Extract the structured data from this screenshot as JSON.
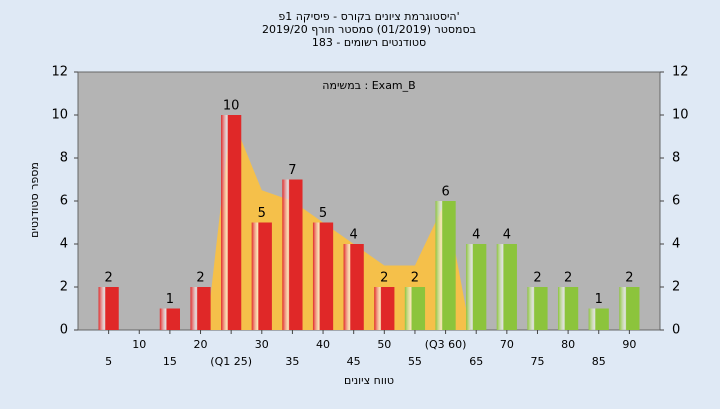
{
  "chart_data": {
    "type": "histogram",
    "title": "היסטוגרמת ציונים בקורס - פיסיקה 1פ'",
    "subtitle": "בסמסטר (01/2019) סמסטר חורף 2019/20",
    "subtitle2": "סטודנטים רשומים - 183",
    "annotation": "במשימה : Exam_B",
    "x_label": "טווח ציונים",
    "y_label": "מספר סטודנטים",
    "x": [
      5,
      10,
      15,
      20,
      25,
      30,
      35,
      40,
      45,
      50,
      55,
      60,
      65,
      70,
      75,
      80,
      85,
      90
    ],
    "values": [
      2,
      0,
      1,
      2,
      10,
      5,
      7,
      5,
      4,
      2,
      2,
      6,
      4,
      4,
      2,
      2,
      1,
      2
    ],
    "colors": [
      "#e02828",
      "#e02828",
      "#e02828",
      "#e02828",
      "#e02828",
      "#e02828",
      "#e02828",
      "#e02828",
      "#e02828",
      "#e02828",
      "#8cc43c",
      "#8cc43c",
      "#8cc43c",
      "#8cc43c",
      "#8cc43c",
      "#8cc43c",
      "#8cc43c",
      "#8cc43c"
    ],
    "band": {
      "color": "#f5c04a",
      "x": [
        21,
        25,
        30,
        35,
        40,
        45,
        50,
        55,
        60,
        64
      ],
      "values": [
        0,
        10,
        6.5,
        6,
        5,
        4,
        3,
        3,
        6,
        0
      ]
    },
    "xlim": [
      0,
      95
    ],
    "xticks": [
      5,
      10,
      15,
      20,
      {
        "value": 25,
        "label": "(Q1 25)"
      },
      30,
      35,
      40,
      45,
      50,
      55,
      {
        "value": 60,
        "label": "(Q3 60)"
      },
      65,
      70,
      75,
      80,
      85,
      90
    ],
    "ylim": [
      0,
      12
    ],
    "yticks": [
      0,
      2,
      4,
      6,
      8,
      10,
      12
    ]
  }
}
